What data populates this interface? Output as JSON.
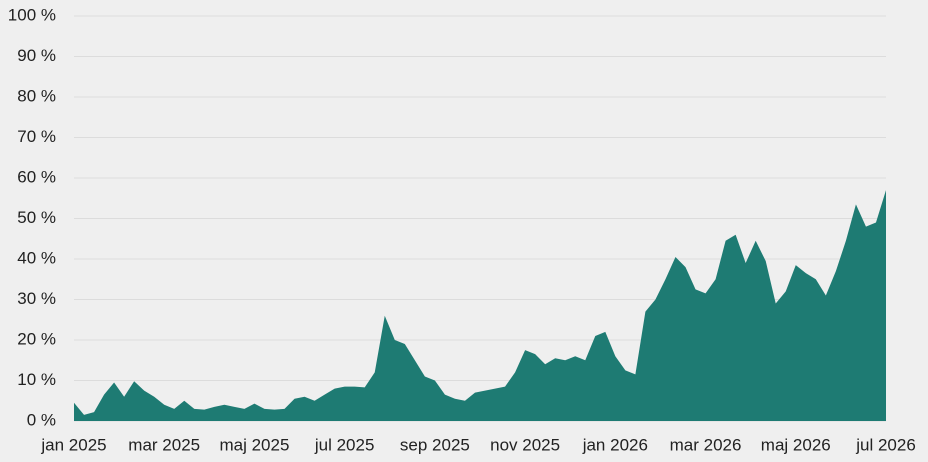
{
  "chart_data": {
    "type": "area",
    "color": "#1e7b73",
    "grid": true,
    "categories": [
      "jan 2025",
      null,
      null,
      null,
      null,
      null,
      null,
      null,
      null,
      "mar 2025",
      null,
      null,
      null,
      null,
      null,
      null,
      null,
      null,
      "maj 2025",
      null,
      null,
      null,
      null,
      null,
      null,
      null,
      null,
      "jul 2025",
      null,
      null,
      null,
      null,
      null,
      null,
      null,
      null,
      "sep 2025",
      null,
      null,
      null,
      null,
      null,
      null,
      null,
      null,
      "nov 2025",
      null,
      null,
      null,
      null,
      null,
      null,
      null,
      null,
      "jan 2026",
      null,
      null,
      null,
      null,
      null,
      null,
      null,
      null,
      "mar 2026",
      null,
      null,
      null,
      null,
      null,
      null,
      null,
      null,
      "maj 2026",
      null,
      null,
      null,
      null,
      null,
      null,
      null,
      null,
      "jul 2026"
    ],
    "values": [
      4.5,
      1.5,
      2.2,
      6.5,
      9.5,
      6,
      9.8,
      7.5,
      6,
      4,
      3,
      5,
      3,
      2.8,
      3.5,
      4,
      3.5,
      3,
      4.3,
      3,
      2.8,
      3,
      5.5,
      6,
      5,
      6.5,
      8,
      8.5,
      8.5,
      8.3,
      12,
      26,
      20,
      19,
      15,
      11,
      10,
      6.5,
      5.5,
      5,
      7,
      7.5,
      8,
      8.5,
      12,
      17.5,
      16.5,
      14,
      15.5,
      15,
      16,
      15,
      21,
      22,
      16,
      12.5,
      11.5,
      27,
      30,
      35,
      40.5,
      38,
      32.5,
      31.5,
      35,
      44.5,
      46,
      39,
      44.5,
      39.5,
      29,
      32,
      38.5,
      36.5,
      35,
      31,
      37,
      44.5,
      53.5,
      48,
      49,
      57
    ],
    "ylim": [
      0,
      100
    ],
    "yticks": [
      {
        "value": 0,
        "label": "0 %"
      },
      {
        "value": 10,
        "label": "10 %"
      },
      {
        "value": 20,
        "label": "20 %"
      },
      {
        "value": 30,
        "label": "30 %"
      },
      {
        "value": 40,
        "label": "40 %"
      },
      {
        "value": 50,
        "label": "50 %"
      },
      {
        "value": 60,
        "label": "60 %"
      },
      {
        "value": 70,
        "label": "70 %"
      },
      {
        "value": 80,
        "label": "80 %"
      },
      {
        "value": 90,
        "label": "90 %"
      },
      {
        "value": 100,
        "label": "100 %"
      }
    ]
  }
}
